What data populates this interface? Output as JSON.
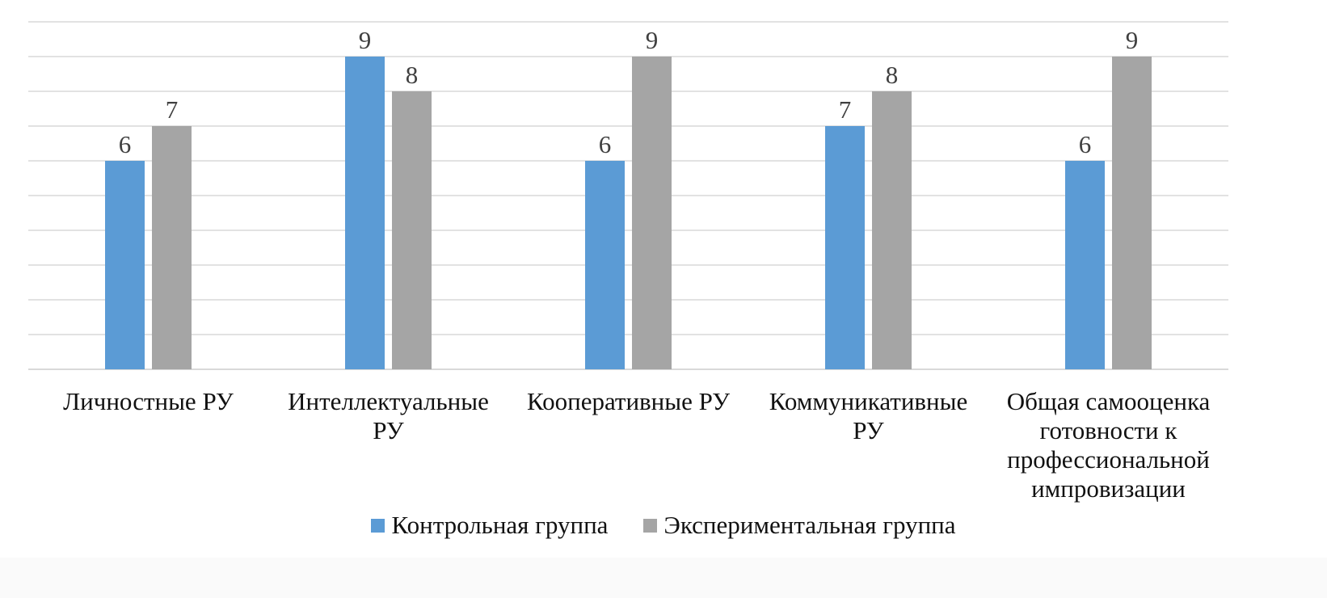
{
  "chart_data": {
    "type": "bar",
    "title": "",
    "xlabel": "",
    "ylabel": "",
    "ylim": [
      0,
      10
    ],
    "grid": true,
    "legend_position": "bottom",
    "categories": [
      "Личностные РУ",
      "Интеллектуальные РУ",
      "Кооперативные РУ",
      "Коммуникативные РУ",
      "Общая самооценка готовности к профессиональной импровизации"
    ],
    "series": [
      {
        "name": "Контрольная группа",
        "color": "#5b9bd5",
        "values": [
          6,
          9,
          6,
          7,
          6
        ]
      },
      {
        "name": "Экспериментальная группа",
        "color": "#a5a5a5",
        "values": [
          7,
          8,
          9,
          8,
          9
        ]
      }
    ]
  }
}
